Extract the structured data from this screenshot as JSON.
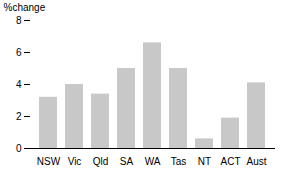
{
  "chart_data": {
    "type": "bar",
    "ylabel": "%change",
    "categories": [
      "NSW",
      "Vic",
      "Qld",
      "SA",
      "WA",
      "Tas",
      "NT",
      "ACT",
      "Aust"
    ],
    "values": [
      3.2,
      4.0,
      3.4,
      5.0,
      6.6,
      5.0,
      0.6,
      1.9,
      4.1
    ],
    "color": "#c8c8c8",
    "ylim": [
      0,
      8
    ],
    "yticks": [
      0,
      2,
      4,
      6,
      8
    ],
    "grid": false
  }
}
